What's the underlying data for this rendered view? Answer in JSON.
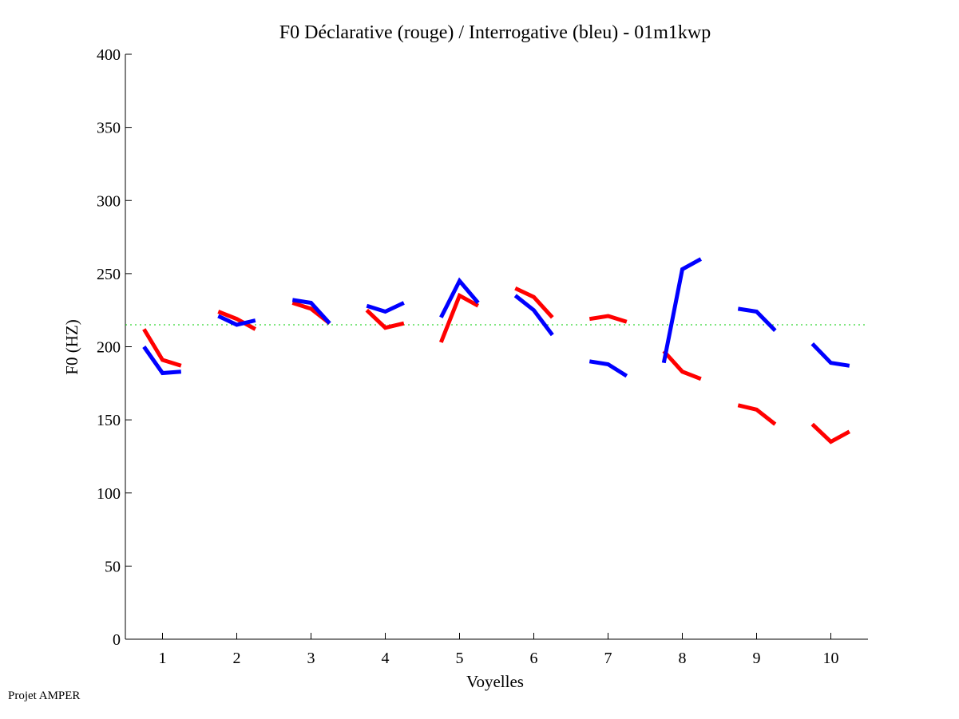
{
  "chart_data": {
    "type": "line",
    "title": "F0 Déclarative (rouge) / Interrogative (bleu) - 01m1kwp",
    "xlabel": "Voyelles",
    "ylabel": "F0 (HZ)",
    "xlim": [
      0.5,
      10.5
    ],
    "ylim": [
      0,
      400
    ],
    "xticks": [
      1,
      2,
      3,
      4,
      5,
      6,
      7,
      8,
      9,
      10
    ],
    "yticks": [
      0,
      50,
      100,
      150,
      200,
      250,
      300,
      350,
      400
    ],
    "reference_line": {
      "value": 215,
      "color": "#00cc00",
      "style": "dotted"
    },
    "point_offsets": [
      -0.25,
      0,
      0.25
    ],
    "series": [
      {
        "name": "Déclarative",
        "color": "#ff0000",
        "segments": [
          [
            212,
            191,
            187
          ],
          [
            224,
            219,
            212
          ],
          [
            230,
            226,
            216
          ],
          [
            225,
            213,
            216
          ],
          [
            203,
            235,
            228
          ],
          [
            240,
            234,
            220
          ],
          [
            219,
            221,
            217
          ],
          [
            197,
            183,
            178
          ],
          [
            160,
            157,
            147
          ],
          [
            147,
            135,
            142
          ]
        ]
      },
      {
        "name": "Interrogative",
        "color": "#0000ff",
        "segments": [
          [
            200,
            182,
            183
          ],
          [
            221,
            215,
            218
          ],
          [
            232,
            230,
            216
          ],
          [
            228,
            224,
            230
          ],
          [
            220,
            245,
            230
          ],
          [
            235,
            225,
            208
          ],
          [
            190,
            188,
            180
          ],
          [
            189,
            253,
            260
          ],
          [
            226,
            224,
            211
          ],
          [
            202,
            189,
            187
          ]
        ]
      }
    ]
  },
  "footer": "Projet AMPER"
}
